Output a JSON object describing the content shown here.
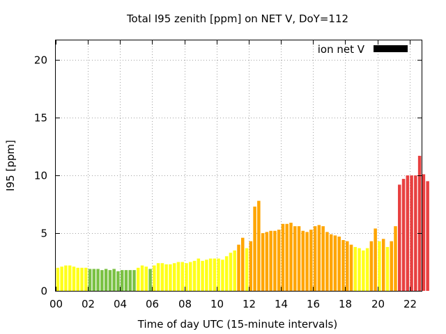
{
  "chart_data": {
    "type": "bar",
    "title": "Total I95 zenith [ppm] on NET V, DoY=112",
    "xlabel": "Time of day UTC (15-minute intervals)",
    "ylabel": "I95 [ppm]",
    "xlim": [
      0,
      22.75
    ],
    "ylim": [
      0,
      21.7
    ],
    "x_interval_hours": 0.25,
    "x_ticks": [
      0,
      2,
      4,
      6,
      8,
      10,
      12,
      14,
      16,
      18,
      20,
      22
    ],
    "x_tick_labels": [
      "00",
      "02",
      "04",
      "06",
      "08",
      "10",
      "12",
      "14",
      "16",
      "18",
      "20",
      "22"
    ],
    "y_ticks": [
      0,
      5,
      10,
      15,
      20
    ],
    "y_tick_labels": [
      "0",
      "5",
      "10",
      "15",
      "20"
    ],
    "grid": true,
    "legend": {
      "label": "ion net V",
      "position": "top-right",
      "color": "#000000"
    },
    "colors": {
      "green": "#7ac143",
      "yellow": "#ffff1a",
      "orange": "#ffa500",
      "red": "#e84040"
    },
    "values": [
      2.0,
      2.1,
      2.2,
      2.2,
      2.1,
      2.0,
      2.0,
      2.0,
      1.9,
      1.9,
      1.9,
      1.8,
      1.9,
      1.8,
      1.9,
      1.7,
      1.8,
      1.8,
      1.8,
      1.8,
      2.0,
      2.2,
      2.1,
      1.9,
      2.2,
      2.4,
      2.4,
      2.3,
      2.3,
      2.4,
      2.5,
      2.5,
      2.4,
      2.5,
      2.6,
      2.8,
      2.6,
      2.7,
      2.8,
      2.8,
      2.8,
      2.7,
      3.0,
      3.3,
      3.5,
      4.0,
      4.6,
      3.7,
      4.3,
      7.3,
      7.8,
      5.0,
      5.1,
      5.2,
      5.2,
      5.3,
      5.8,
      5.8,
      5.9,
      5.6,
      5.6,
      5.2,
      5.1,
      5.3,
      5.6,
      5.7,
      5.6,
      5.1,
      4.9,
      4.8,
      4.7,
      4.4,
      4.3,
      4.0,
      3.8,
      3.7,
      3.5,
      3.7,
      4.3,
      5.4,
      4.3,
      4.5,
      3.8,
      4.3,
      5.6,
      9.2,
      9.7,
      10.0,
      10.0,
      10.0,
      11.7,
      10.1,
      9.5
    ],
    "value_colors": [
      "yellow",
      "yellow",
      "yellow",
      "yellow",
      "yellow",
      "yellow",
      "yellow",
      "yellow",
      "green",
      "green",
      "green",
      "green",
      "green",
      "green",
      "green",
      "green",
      "green",
      "green",
      "green",
      "green",
      "yellow",
      "yellow",
      "yellow",
      "green",
      "yellow",
      "yellow",
      "yellow",
      "yellow",
      "yellow",
      "yellow",
      "yellow",
      "yellow",
      "yellow",
      "yellow",
      "yellow",
      "yellow",
      "yellow",
      "yellow",
      "yellow",
      "yellow",
      "yellow",
      "yellow",
      "yellow",
      "yellow",
      "yellow",
      "orange",
      "orange",
      "yellow",
      "orange",
      "orange",
      "orange",
      "orange",
      "orange",
      "orange",
      "orange",
      "orange",
      "orange",
      "orange",
      "orange",
      "orange",
      "orange",
      "orange",
      "orange",
      "orange",
      "orange",
      "orange",
      "orange",
      "orange",
      "orange",
      "orange",
      "orange",
      "orange",
      "orange",
      "orange",
      "yellow",
      "yellow",
      "yellow",
      "yellow",
      "orange",
      "orange",
      "yellow",
      "orange",
      "yellow",
      "orange",
      "orange",
      "red",
      "red",
      "red",
      "red",
      "red",
      "red",
      "red",
      "red"
    ]
  }
}
